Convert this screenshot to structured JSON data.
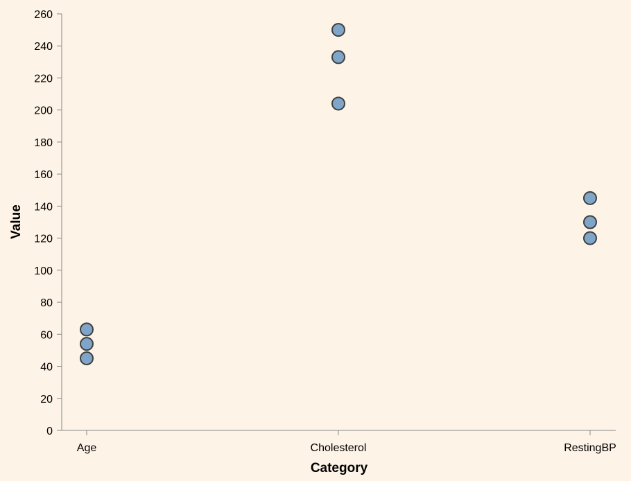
{
  "chart_data": {
    "type": "scatter",
    "categories": [
      "Age",
      "Cholesterol",
      "RestingBP"
    ],
    "points": [
      {
        "category": "Age",
        "value": 63
      },
      {
        "category": "Age",
        "value": 54
      },
      {
        "category": "Age",
        "value": 45
      },
      {
        "category": "Cholesterol",
        "value": 250
      },
      {
        "category": "Cholesterol",
        "value": 233
      },
      {
        "category": "Cholesterol",
        "value": 204
      },
      {
        "category": "RestingBP",
        "value": 145
      },
      {
        "category": "RestingBP",
        "value": 130
      },
      {
        "category": "RestingBP",
        "value": 120
      }
    ],
    "xlabel": "Category",
    "ylabel": "Value",
    "ylim": [
      0,
      260
    ],
    "yticks": [
      0,
      20,
      40,
      60,
      80,
      100,
      120,
      140,
      160,
      180,
      200,
      220,
      240,
      260
    ],
    "grid": false,
    "colors": {
      "marker_fill": "#7fa6c8",
      "marker_stroke": "#404040",
      "background": "#fdf3e6"
    }
  }
}
